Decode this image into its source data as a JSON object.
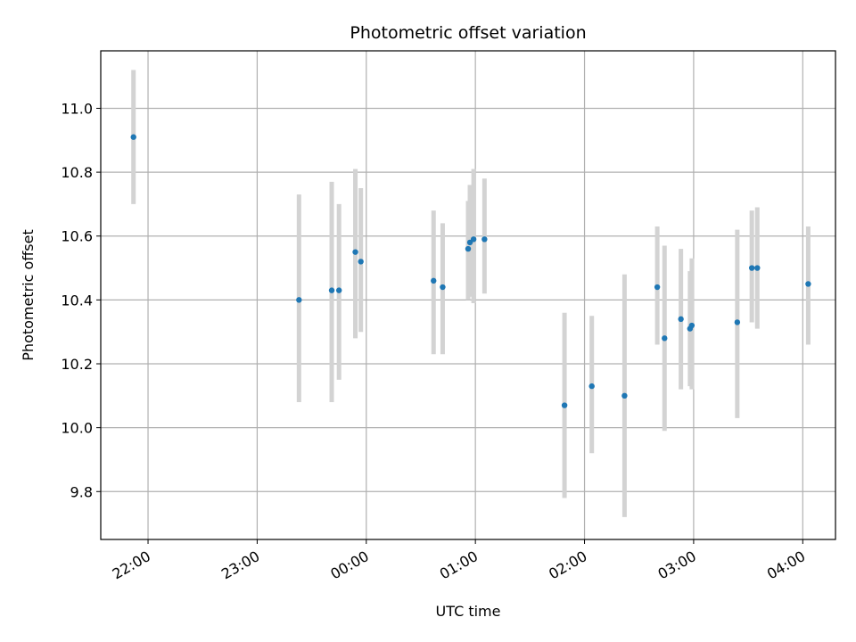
{
  "chart_data": {
    "type": "scatter",
    "title": "Photometric offset variation",
    "xlabel": "UTC time",
    "ylabel": "Photometric offset",
    "xlim": [
      "21:34",
      "04:18"
    ],
    "ylim": [
      9.65,
      11.18
    ],
    "grid": true,
    "x_tick_labels": [
      "22:00",
      "23:00",
      "00:00",
      "01:00",
      "02:00",
      "03:00",
      "04:00"
    ],
    "y_ticks": [
      9.8,
      10.0,
      10.2,
      10.4,
      10.6,
      10.8,
      11.0
    ],
    "y_tick_labels": [
      "9.8",
      "10.0",
      "10.2",
      "10.4",
      "10.6",
      "10.8",
      "11.0"
    ],
    "point_color": "#1f77b4",
    "errorbar_color": "#d3d3d3",
    "points": [
      {
        "x": "21:52",
        "y": 10.91,
        "ylow": 10.7,
        "yhigh": 11.12
      },
      {
        "x": "23:23",
        "y": 10.4,
        "ylow": 10.08,
        "yhigh": 10.73
      },
      {
        "x": "23:41",
        "y": 10.43,
        "ylow": 10.08,
        "yhigh": 10.77
      },
      {
        "x": "23:45",
        "y": 10.43,
        "ylow": 10.15,
        "yhigh": 10.7
      },
      {
        "x": "23:54",
        "y": 10.55,
        "ylow": 10.28,
        "yhigh": 10.81
      },
      {
        "x": "23:57",
        "y": 10.52,
        "ylow": 10.3,
        "yhigh": 10.75
      },
      {
        "x": "00:37",
        "y": 10.46,
        "ylow": 10.23,
        "yhigh": 10.68
      },
      {
        "x": "00:42",
        "y": 10.44,
        "ylow": 10.23,
        "yhigh": 10.64
      },
      {
        "x": "00:56",
        "y": 10.56,
        "ylow": 10.4,
        "yhigh": 10.71
      },
      {
        "x": "00:57",
        "y": 10.58,
        "ylow": 10.41,
        "yhigh": 10.76
      },
      {
        "x": "00:59",
        "y": 10.59,
        "ylow": 10.39,
        "yhigh": 10.81
      },
      {
        "x": "01:05",
        "y": 10.59,
        "ylow": 10.42,
        "yhigh": 10.78
      },
      {
        "x": "01:49",
        "y": 10.07,
        "ylow": 9.78,
        "yhigh": 10.36
      },
      {
        "x": "02:04",
        "y": 10.13,
        "ylow": 9.92,
        "yhigh": 10.35
      },
      {
        "x": "02:22",
        "y": 10.1,
        "ylow": 9.72,
        "yhigh": 10.48
      },
      {
        "x": "02:40",
        "y": 10.44,
        "ylow": 10.26,
        "yhigh": 10.63
      },
      {
        "x": "02:44",
        "y": 10.28,
        "ylow": 9.99,
        "yhigh": 10.57
      },
      {
        "x": "02:53",
        "y": 10.34,
        "ylow": 10.12,
        "yhigh": 10.56
      },
      {
        "x": "02:58",
        "y": 10.31,
        "ylow": 10.13,
        "yhigh": 10.49
      },
      {
        "x": "02:59",
        "y": 10.32,
        "ylow": 10.12,
        "yhigh": 10.53
      },
      {
        "x": "03:24",
        "y": 10.33,
        "ylow": 10.03,
        "yhigh": 10.62
      },
      {
        "x": "03:32",
        "y": 10.5,
        "ylow": 10.33,
        "yhigh": 10.68
      },
      {
        "x": "03:35",
        "y": 10.5,
        "ylow": 10.31,
        "yhigh": 10.69
      },
      {
        "x": "04:03",
        "y": 10.45,
        "ylow": 10.26,
        "yhigh": 10.63
      }
    ]
  }
}
